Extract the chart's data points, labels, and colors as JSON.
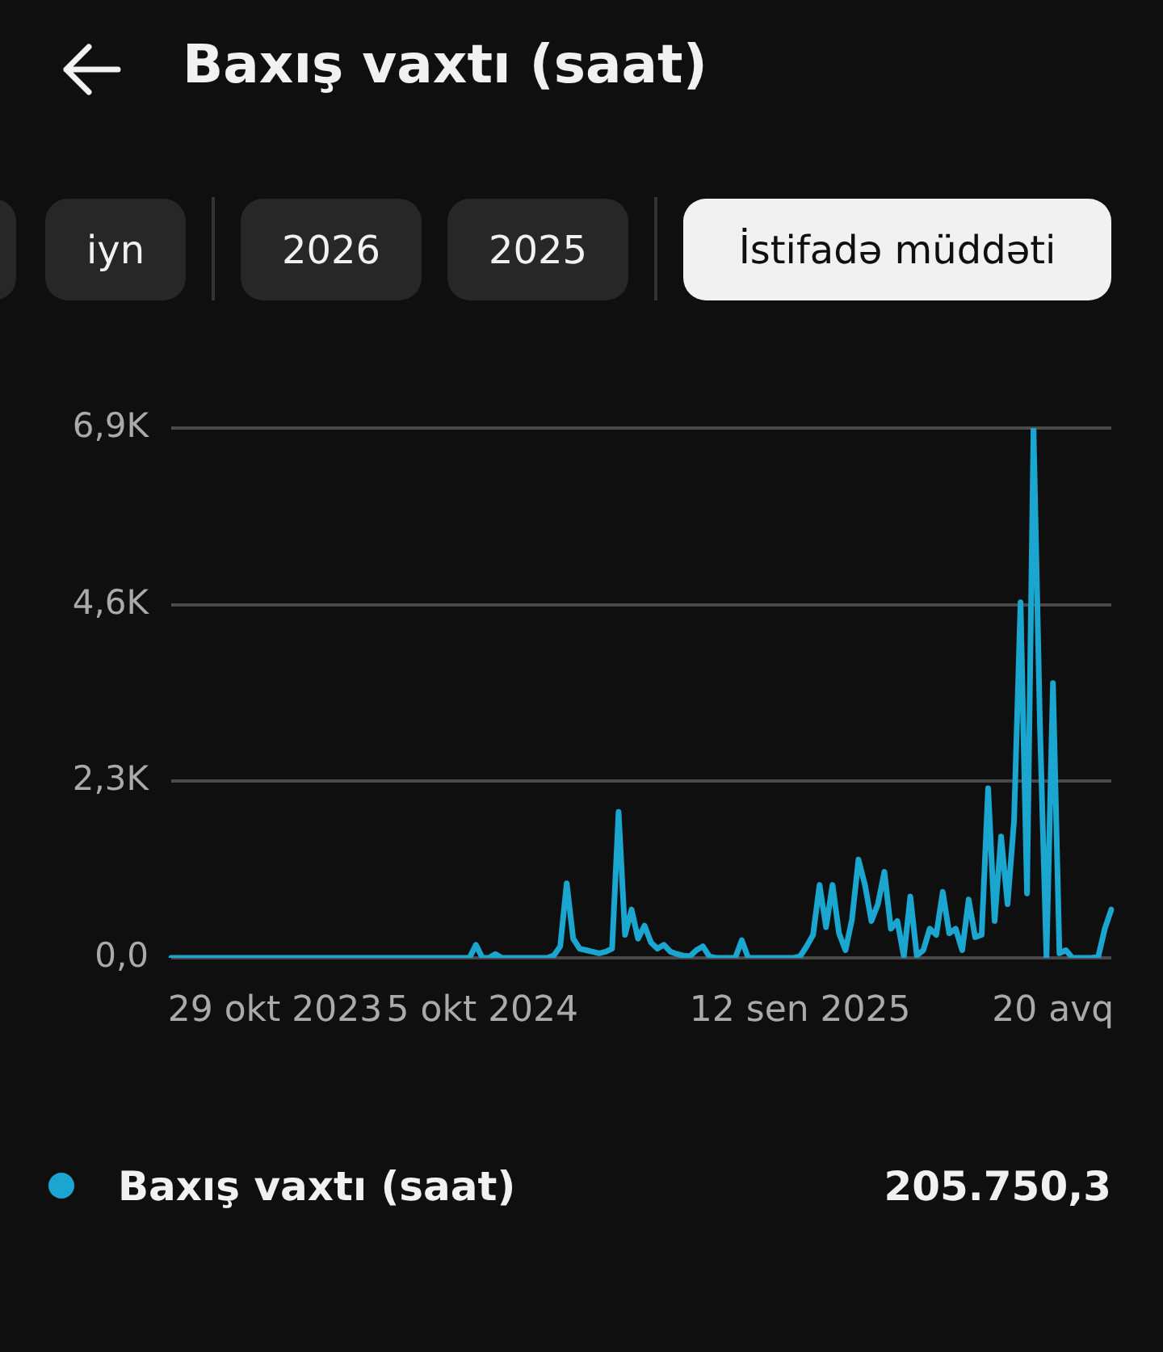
{
  "chart_data": {
    "type": "line",
    "title": "Baxış vaxtı (saat)",
    "annotations": [
      "iyn",
      "2026",
      "2025",
      "İstifadə müddəti",
      "205.750,3"
    ],
    "categories": [
      null,
      null,
      null,
      null,
      null,
      null,
      null,
      null,
      null,
      null,
      null,
      null,
      null,
      null,
      null,
      null,
      "29 okt 2023",
      null,
      null,
      null,
      null,
      null,
      null,
      null,
      null,
      null,
      null,
      null,
      null,
      null,
      null,
      null,
      null,
      null,
      null,
      null,
      null,
      null,
      null,
      null,
      null,
      null,
      null,
      null,
      null,
      null,
      null,
      null,
      "5 okt 2024",
      null,
      null,
      null,
      null,
      null,
      null,
      null,
      null,
      null,
      null,
      null,
      null,
      null,
      null,
      null,
      null,
      null,
      null,
      null,
      null,
      null,
      null,
      null,
      null,
      null,
      null,
      null,
      null,
      null,
      null,
      null,
      null,
      null,
      null,
      null,
      null,
      null,
      null,
      null,
      null,
      null,
      null,
      null,
      null,
      null,
      null,
      null,
      null,
      "12 sen 2025",
      null,
      null,
      null,
      null,
      null,
      null,
      null,
      null,
      null,
      null,
      null,
      null,
      null,
      null,
      null,
      null,
      null,
      null,
      null,
      null,
      null,
      null,
      null,
      null,
      null,
      null,
      null,
      null,
      null,
      null,
      null,
      null,
      null,
      null,
      null,
      null,
      null,
      null,
      "20 avq",
      null,
      null,
      null,
      null,
      null,
      null,
      null,
      null,
      null
    ],
    "series": [
      {
        "name": "Baxış vaxtı (saat)",
        "color": "#1aa6cf",
        "values": [
          0,
          0,
          0,
          0,
          0,
          0,
          0,
          0,
          0,
          0,
          0,
          0,
          0,
          0,
          0,
          0,
          0,
          0,
          0,
          0,
          0,
          0,
          0,
          0,
          0,
          0,
          0,
          0,
          0,
          0,
          0,
          0,
          0,
          0,
          0,
          0,
          0,
          0,
          0,
          0,
          0,
          0,
          0,
          0,
          0,
          0,
          0,
          170,
          0,
          0,
          50,
          0,
          0,
          0,
          0,
          0,
          0,
          0,
          0,
          30,
          150,
          970,
          250,
          120,
          100,
          80,
          60,
          80,
          120,
          1900,
          300,
          630,
          250,
          420,
          200,
          120,
          170,
          80,
          50,
          30,
          20,
          100,
          150,
          20,
          0,
          0,
          0,
          0,
          230,
          0,
          0,
          0,
          0,
          0,
          0,
          0,
          0,
          20,
          150,
          300,
          950,
          400,
          950,
          320,
          100,
          500,
          1280,
          950,
          480,
          700,
          1120,
          380,
          480,
          20,
          800,
          30,
          100,
          380,
          300,
          860,
          320,
          380,
          100,
          760,
          270,
          300,
          2210,
          480,
          1580,
          700,
          1790,
          4630,
          840,
          6900,
          3010,
          0,
          3580,
          60,
          100,
          0,
          0,
          0,
          0,
          20,
          380,
          630
        ]
      }
    ],
    "ylim": [
      0,
      6900
    ],
    "yticks": [
      {
        "value": 0,
        "label": "0,0"
      },
      {
        "value": 2300,
        "label": "2,3K"
      },
      {
        "value": 4600,
        "label": "4,6K"
      },
      {
        "value": 6900,
        "label": "6,9K"
      }
    ],
    "grid": "y",
    "legend": "bottom",
    "marker": "none",
    "line_style": "solid"
  }
}
